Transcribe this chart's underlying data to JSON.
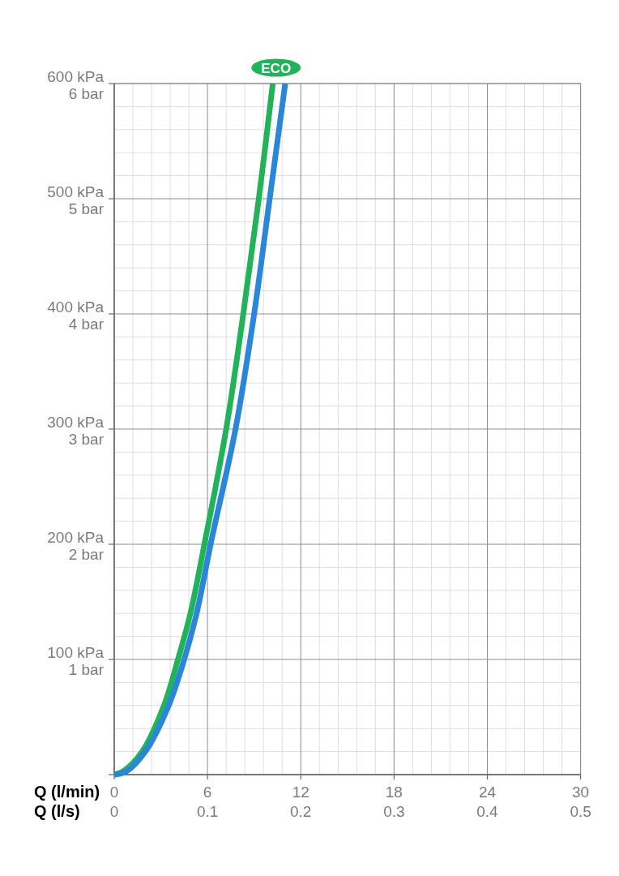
{
  "chart_data": {
    "type": "line",
    "xlabel": "Q (l/min)",
    "x2label": "Q (l/s)",
    "xlim": [
      0,
      30
    ],
    "xticks": [
      0,
      {
        "value": 1.2,
        "label": null
      },
      {
        "value": 2.4,
        "label": null
      },
      {
        "value": 3.6,
        "label": null
      },
      {
        "value": 4.8,
        "label": null
      },
      6,
      {
        "value": 7.2,
        "label": null
      },
      {
        "value": 8.4,
        "label": null
      },
      {
        "value": 9.6,
        "label": null
      },
      {
        "value": 10.8,
        "label": null
      },
      12,
      {
        "value": 13.2,
        "label": null
      },
      {
        "value": 14.4,
        "label": null
      },
      {
        "value": 15.6,
        "label": null
      },
      {
        "value": 16.8,
        "label": null
      },
      18,
      {
        "value": 19.2,
        "label": null
      },
      {
        "value": 20.4,
        "label": null
      },
      {
        "value": 21.6,
        "label": null
      },
      {
        "value": 22.8,
        "label": null
      },
      24,
      {
        "value": 25.2,
        "label": null
      },
      {
        "value": 26.4,
        "label": null
      },
      {
        "value": 27.6,
        "label": null
      },
      {
        "value": 28.8,
        "label": null
      },
      30
    ],
    "x2lim": [
      0,
      0.5
    ],
    "x2ticks": [
      0,
      0.1,
      0.2,
      0.3,
      0.4,
      0.5
    ],
    "ylim": [
      0,
      600
    ],
    "yticks": [
      {
        "value": 0,
        "label": null
      },
      {
        "value": 20,
        "label": null
      },
      {
        "value": 40,
        "label": null
      },
      {
        "value": 60,
        "label": null
      },
      {
        "value": 80,
        "label": null
      },
      {
        "value": 100,
        "label": "100 kPa"
      },
      {
        "value": 120,
        "label": null
      },
      {
        "value": 140,
        "label": null
      },
      {
        "value": 160,
        "label": null
      },
      {
        "value": 180,
        "label": null
      },
      {
        "value": 200,
        "label": "200 kPa"
      },
      {
        "value": 220,
        "label": null
      },
      {
        "value": 240,
        "label": null
      },
      {
        "value": 260,
        "label": null
      },
      {
        "value": 280,
        "label": null
      },
      {
        "value": 300,
        "label": "300 kPa"
      },
      {
        "value": 320,
        "label": null
      },
      {
        "value": 340,
        "label": null
      },
      {
        "value": 360,
        "label": null
      },
      {
        "value": 380,
        "label": null
      },
      {
        "value": 400,
        "label": "400 kPa"
      },
      {
        "value": 420,
        "label": null
      },
      {
        "value": 440,
        "label": null
      },
      {
        "value": 460,
        "label": null
      },
      {
        "value": 480,
        "label": null
      },
      {
        "value": 500,
        "label": "500 kPa"
      },
      {
        "value": 520,
        "label": null
      },
      {
        "value": 540,
        "label": null
      },
      {
        "value": 560,
        "label": null
      },
      {
        "value": 580,
        "label": null
      },
      {
        "value": 600,
        "label": "600 kPa"
      }
    ],
    "y2lim": [
      0,
      6
    ],
    "y2ticks": [
      {
        "value": 1,
        "label": "1 bar"
      },
      {
        "value": 2,
        "label": "2 bar"
      },
      {
        "value": 3,
        "label": "3 bar"
      },
      {
        "value": 4,
        "label": "4 bar"
      },
      {
        "value": 5,
        "label": "5 bar"
      },
      {
        "value": 6,
        "label": "6 bar"
      }
    ],
    "grid": true,
    "line_style": "solid",
    "series": [
      {
        "name": "ECO",
        "color": "#22b25a",
        "x": [
          0,
          0.6,
          1.8,
          3.2,
          4.1,
          4.9,
          5.8,
          7.2,
          8.3,
          9.3,
          10.2
        ],
        "values": [
          0,
          3,
          20,
          60,
          100,
          140,
          200,
          300,
          400,
          500,
          600
        ]
      },
      {
        "color": "#2a86d8",
        "x": [
          0,
          0.8,
          2.0,
          3.5,
          4.5,
          5.3,
          6.2,
          7.8,
          9.0,
          10.0,
          11.0
        ],
        "values": [
          0,
          3,
          20,
          60,
          100,
          140,
          200,
          300,
          400,
          500,
          600
        ]
      }
    ]
  }
}
